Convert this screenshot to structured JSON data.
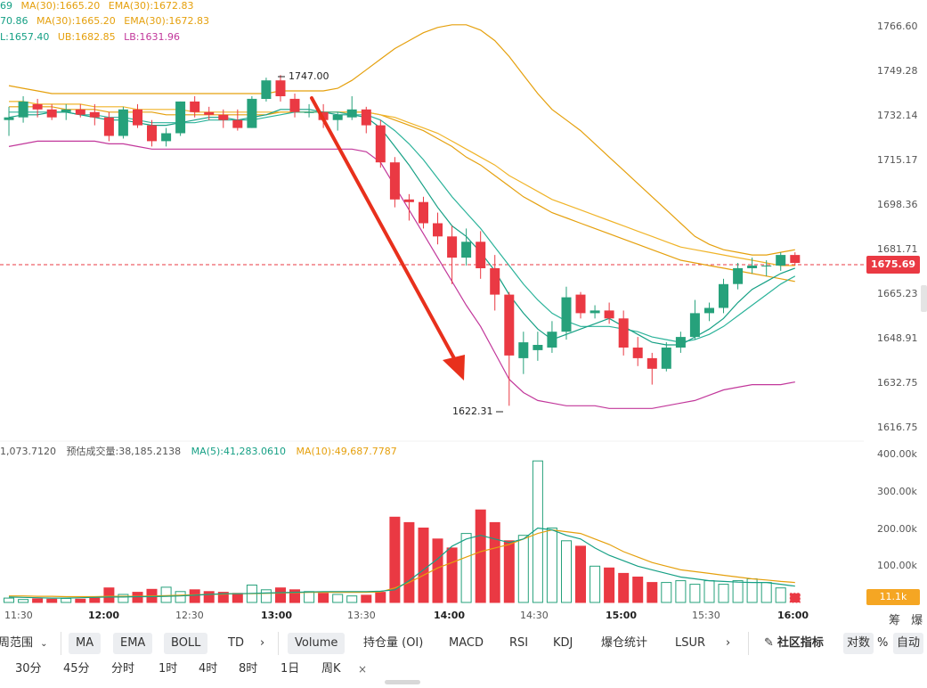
{
  "legend": {
    "line1": [
      {
        "text": "69",
        "color": "#16a085"
      },
      {
        "text": "MA(30):1665.20",
        "color": "#e5a00d"
      },
      {
        "text": "EMA(30):1672.83",
        "color": "#e5a00d"
      }
    ],
    "line2": [
      {
        "text": "70.86",
        "color": "#16a085"
      },
      {
        "text": "MA(30):1665.20",
        "color": "#e5a00d"
      },
      {
        "text": "EMA(30):1672.83",
        "color": "#e5a00d"
      }
    ],
    "line3": [
      {
        "text": "L:1657.40",
        "color": "#16a085"
      },
      {
        "text": "UB:1682.85",
        "color": "#e5a00d"
      },
      {
        "text": "LB:1631.96",
        "color": "#c2389b"
      }
    ],
    "vol_line": [
      {
        "text": "1,073.7120",
        "color": "#555555"
      },
      {
        "text": "预估成交量:38,185.2138",
        "color": "#555555"
      },
      {
        "text": "MA(5):41,283.0610",
        "color": "#16a085"
      },
      {
        "text": "MA(10):49,687.7787",
        "color": "#e5a00d"
      }
    ]
  },
  "price_axis": [
    "1766.60",
    "1749.28",
    "1732.14",
    "1715.17",
    "1698.36",
    "1681.71",
    "1665.23",
    "1648.91",
    "1632.75",
    "1616.75"
  ],
  "volume_axis": [
    "400.00k",
    "300.00k",
    "200.00k",
    "100.00k"
  ],
  "time_axis": [
    {
      "label": "11:30",
      "bold": false
    },
    {
      "label": "12:00",
      "bold": true
    },
    {
      "label": "12:30",
      "bold": false
    },
    {
      "label": "13:00",
      "bold": true
    },
    {
      "label": "13:30",
      "bold": false
    },
    {
      "label": "14:00",
      "bold": true
    },
    {
      "label": "14:30",
      "bold": false
    },
    {
      "label": "15:00",
      "bold": true
    },
    {
      "label": "15:30",
      "bold": false
    },
    {
      "label": "16:00",
      "bold": true
    }
  ],
  "current_price": "1675.69",
  "current_volume": "11.1k",
  "annotations": {
    "high": "1747.00",
    "low": "1622.31"
  },
  "right_corner": [
    "筹",
    "爆"
  ],
  "indicator_bar": {
    "range_label": "周范围",
    "overlays": [
      "MA",
      "EMA",
      "BOLL",
      "TD"
    ],
    "subcharts": [
      "Volume",
      "持仓量 (OI)",
      "MACD",
      "RSI",
      "KDJ",
      "爆仓统计",
      "LSUR"
    ],
    "community": "社区指标",
    "scale_options": [
      "对数",
      "%",
      "自动"
    ]
  },
  "timeframes": [
    "30分",
    "45分",
    "分时",
    "1时",
    "4时",
    "8时",
    "1日",
    "周K"
  ],
  "colors": {
    "up": "#26a17b",
    "down": "#ea3943",
    "ma_yellow": "#e5a00d",
    "ma_teal": "#16a085",
    "lb_pink": "#c2389b",
    "arrow": "#e8301c"
  },
  "chart_data": {
    "type": "candlestick",
    "ylim": [
      1612,
      1772
    ],
    "candles": [
      {
        "o": 1730,
        "h": 1735,
        "l": 1724,
        "c": 1731
      },
      {
        "o": 1731,
        "h": 1739,
        "l": 1729,
        "c": 1737
      },
      {
        "o": 1736,
        "h": 1738,
        "l": 1731,
        "c": 1734
      },
      {
        "o": 1734,
        "h": 1736,
        "l": 1730,
        "c": 1731
      },
      {
        "o": 1733,
        "h": 1736,
        "l": 1730,
        "c": 1734
      },
      {
        "o": 1734,
        "h": 1736,
        "l": 1731,
        "c": 1732
      },
      {
        "o": 1733,
        "h": 1736,
        "l": 1728,
        "c": 1731
      },
      {
        "o": 1731,
        "h": 1733,
        "l": 1722,
        "c": 1724
      },
      {
        "o": 1724,
        "h": 1735,
        "l": 1723,
        "c": 1734
      },
      {
        "o": 1734,
        "h": 1736,
        "l": 1727,
        "c": 1728
      },
      {
        "o": 1728,
        "h": 1730,
        "l": 1720,
        "c": 1722
      },
      {
        "o": 1722,
        "h": 1727,
        "l": 1720,
        "c": 1725
      },
      {
        "o": 1725,
        "h": 1737,
        "l": 1724,
        "c": 1737
      },
      {
        "o": 1737,
        "h": 1739,
        "l": 1731,
        "c": 1733
      },
      {
        "o": 1733,
        "h": 1735,
        "l": 1730,
        "c": 1732
      },
      {
        "o": 1732,
        "h": 1734,
        "l": 1727,
        "c": 1730
      },
      {
        "o": 1730,
        "h": 1734,
        "l": 1726,
        "c": 1727
      },
      {
        "o": 1727,
        "h": 1739,
        "l": 1727,
        "c": 1738
      },
      {
        "o": 1738,
        "h": 1746,
        "l": 1737,
        "c": 1745
      },
      {
        "o": 1745,
        "h": 1747,
        "l": 1737,
        "c": 1739
      },
      {
        "o": 1738,
        "h": 1740,
        "l": 1731,
        "c": 1733
      },
      {
        "o": 1733,
        "h": 1736,
        "l": 1731,
        "c": 1733
      },
      {
        "o": 1733,
        "h": 1736,
        "l": 1727,
        "c": 1730
      },
      {
        "o": 1730,
        "h": 1733,
        "l": 1726,
        "c": 1732
      },
      {
        "o": 1731,
        "h": 1739,
        "l": 1730,
        "c": 1734
      },
      {
        "o": 1734,
        "h": 1735,
        "l": 1725,
        "c": 1728
      },
      {
        "o": 1728,
        "h": 1730,
        "l": 1712,
        "c": 1714
      },
      {
        "o": 1714,
        "h": 1716,
        "l": 1697,
        "c": 1700
      },
      {
        "o": 1700,
        "h": 1702,
        "l": 1692,
        "c": 1699
      },
      {
        "o": 1699,
        "h": 1701,
        "l": 1689,
        "c": 1691
      },
      {
        "o": 1691,
        "h": 1695,
        "l": 1683,
        "c": 1686
      },
      {
        "o": 1686,
        "h": 1690,
        "l": 1668,
        "c": 1678
      },
      {
        "o": 1678,
        "h": 1689,
        "l": 1675,
        "c": 1684
      },
      {
        "o": 1684,
        "h": 1688,
        "l": 1670,
        "c": 1674
      },
      {
        "o": 1674,
        "h": 1679,
        "l": 1658,
        "c": 1664
      },
      {
        "o": 1664,
        "h": 1665,
        "l": 1622,
        "c": 1641
      },
      {
        "o": 1640,
        "h": 1650,
        "l": 1634,
        "c": 1646
      },
      {
        "o": 1643,
        "h": 1650,
        "l": 1639,
        "c": 1645
      },
      {
        "o": 1644,
        "h": 1654,
        "l": 1642,
        "c": 1650
      },
      {
        "o": 1650,
        "h": 1667,
        "l": 1647,
        "c": 1663
      },
      {
        "o": 1664,
        "h": 1665,
        "l": 1655,
        "c": 1657
      },
      {
        "o": 1657,
        "h": 1660,
        "l": 1655,
        "c": 1658
      },
      {
        "o": 1658,
        "h": 1661,
        "l": 1653,
        "c": 1655
      },
      {
        "o": 1655,
        "h": 1658,
        "l": 1641,
        "c": 1644
      },
      {
        "o": 1644,
        "h": 1648,
        "l": 1637,
        "c": 1640
      },
      {
        "o": 1640,
        "h": 1642,
        "l": 1630,
        "c": 1636
      },
      {
        "o": 1636,
        "h": 1646,
        "l": 1635,
        "c": 1644
      },
      {
        "o": 1644,
        "h": 1650,
        "l": 1642,
        "c": 1648
      },
      {
        "o": 1648,
        "h": 1662,
        "l": 1647,
        "c": 1657
      },
      {
        "o": 1657,
        "h": 1661,
        "l": 1654,
        "c": 1659
      },
      {
        "o": 1659,
        "h": 1670,
        "l": 1657,
        "c": 1668
      },
      {
        "o": 1668,
        "h": 1676,
        "l": 1666,
        "c": 1674
      },
      {
        "o": 1674,
        "h": 1678,
        "l": 1672,
        "c": 1675
      },
      {
        "o": 1675,
        "h": 1677,
        "l": 1671,
        "c": 1675
      },
      {
        "o": 1675,
        "h": 1680,
        "l": 1673,
        "c": 1679
      },
      {
        "o": 1679,
        "h": 1680,
        "l": 1675,
        "c": 1676
      }
    ],
    "volumes": [
      12,
      8,
      10,
      9,
      11,
      9,
      12,
      40,
      22,
      28,
      36,
      42,
      30,
      35,
      30,
      28,
      25,
      48,
      35,
      40,
      35,
      30,
      25,
      22,
      18,
      20,
      28,
      235,
      220,
      205,
      175,
      150,
      190,
      255,
      220,
      170,
      185,
      390,
      205,
      170,
      155,
      100,
      95,
      80,
      70,
      55,
      55,
      60,
      50,
      60,
      50,
      60,
      65,
      55,
      40,
      25
    ],
    "vol_ylim": [
      0,
      420
    ],
    "ma_teal": [
      1731,
      1732,
      1732,
      1733,
      1733,
      1732,
      1731,
      1730,
      1730,
      1729,
      1728,
      1728,
      1729,
      1730,
      1731,
      1731,
      1730,
      1731,
      1732,
      1734,
      1734,
      1734,
      1733,
      1732,
      1732,
      1731,
      1727,
      1720,
      1713,
      1705,
      1697,
      1690,
      1686,
      1680,
      1673,
      1664,
      1657,
      1651,
      1647,
      1649,
      1651,
      1653,
      1655,
      1652,
      1649,
      1646,
      1645,
      1645,
      1648,
      1651,
      1655,
      1661,
      1666,
      1669,
      1672,
      1674
    ],
    "ma_teal2": [
      1733,
      1733,
      1733,
      1733,
      1733,
      1732,
      1732,
      1731,
      1731,
      1730,
      1729,
      1729,
      1729,
      1729,
      1730,
      1730,
      1730,
      1730,
      1731,
      1732,
      1733,
      1733,
      1733,
      1733,
      1732,
      1732,
      1730,
      1726,
      1721,
      1715,
      1708,
      1701,
      1695,
      1689,
      1682,
      1675,
      1668,
      1662,
      1657,
      1654,
      1652,
      1652,
      1652,
      1651,
      1650,
      1648,
      1647,
      1646,
      1647,
      1649,
      1652,
      1656,
      1660,
      1664,
      1668,
      1671
    ],
    "ma30": [
      1735,
      1735,
      1735,
      1735,
      1734,
      1734,
      1734,
      1733,
      1733,
      1733,
      1733,
      1732,
      1732,
      1732,
      1732,
      1732,
      1732,
      1732,
      1732,
      1733,
      1733,
      1733,
      1733,
      1733,
      1733,
      1733,
      1732,
      1730,
      1728,
      1726,
      1723,
      1720,
      1716,
      1713,
      1709,
      1705,
      1701,
      1698,
      1695,
      1693,
      1691,
      1689,
      1687,
      1685,
      1683,
      1681,
      1679,
      1677,
      1676,
      1675,
      1674,
      1673,
      1672,
      1671,
      1670,
      1669
    ],
    "ema30": [
      1737,
      1737,
      1736,
      1736,
      1736,
      1736,
      1735,
      1735,
      1735,
      1734,
      1734,
      1734,
      1734,
      1733,
      1733,
      1733,
      1733,
      1733,
      1733,
      1733,
      1733,
      1733,
      1733,
      1733,
      1733,
      1733,
      1732,
      1731,
      1729,
      1727,
      1725,
      1722,
      1719,
      1716,
      1713,
      1709,
      1706,
      1703,
      1700,
      1698,
      1696,
      1694,
      1692,
      1690,
      1688,
      1686,
      1684,
      1682,
      1681,
      1680,
      1679,
      1678,
      1677,
      1676,
      1675,
      1675
    ],
    "boll_ub": [
      1743,
      1742,
      1741,
      1740,
      1740,
      1740,
      1740,
      1740,
      1740,
      1740,
      1740,
      1740,
      1740,
      1740,
      1740,
      1740,
      1740,
      1740,
      1740,
      1741,
      1741,
      1741,
      1741,
      1742,
      1745,
      1749,
      1753,
      1757,
      1760,
      1763,
      1765,
      1766,
      1766,
      1764,
      1760,
      1754,
      1747,
      1740,
      1734,
      1730,
      1726,
      1721,
      1716,
      1711,
      1706,
      1701,
      1696,
      1691,
      1686,
      1683,
      1681,
      1680,
      1679,
      1679,
      1680,
      1681
    ],
    "boll_lb": [
      1720,
      1721,
      1722,
      1722,
      1722,
      1722,
      1722,
      1721,
      1721,
      1720,
      1719,
      1719,
      1719,
      1719,
      1719,
      1719,
      1719,
      1719,
      1719,
      1719,
      1719,
      1719,
      1719,
      1719,
      1719,
      1718,
      1714,
      1705,
      1696,
      1687,
      1678,
      1669,
      1660,
      1652,
      1642,
      1632,
      1627,
      1624,
      1623,
      1622,
      1622,
      1622,
      1621,
      1621,
      1621,
      1621,
      1622,
      1623,
      1624,
      1626,
      1628,
      1629,
      1630,
      1630,
      1630,
      1631
    ],
    "vol_ma5": [
      15,
      14,
      13,
      12,
      12,
      13,
      14,
      15,
      15,
      16,
      16,
      17,
      18,
      20,
      22,
      24,
      24,
      25,
      26,
      27,
      28,
      29,
      30,
      30,
      30,
      30,
      31,
      35,
      60,
      90,
      120,
      155,
      175,
      185,
      175,
      165,
      175,
      205,
      200,
      185,
      175,
      150,
      130,
      115,
      100,
      90,
      80,
      70,
      65,
      60,
      58,
      56,
      55,
      55,
      50,
      45
    ],
    "vol_ma10": [
      18,
      18,
      17,
      17,
      16,
      16,
      16,
      17,
      17,
      17,
      18,
      19,
      20,
      21,
      22,
      23,
      24,
      24,
      25,
      26,
      27,
      28,
      28,
      28,
      28,
      28,
      29,
      40,
      55,
      75,
      95,
      110,
      125,
      140,
      150,
      160,
      175,
      190,
      200,
      195,
      190,
      175,
      160,
      140,
      125,
      110,
      100,
      90,
      85,
      80,
      75,
      70,
      65,
      62,
      58,
      55
    ]
  }
}
